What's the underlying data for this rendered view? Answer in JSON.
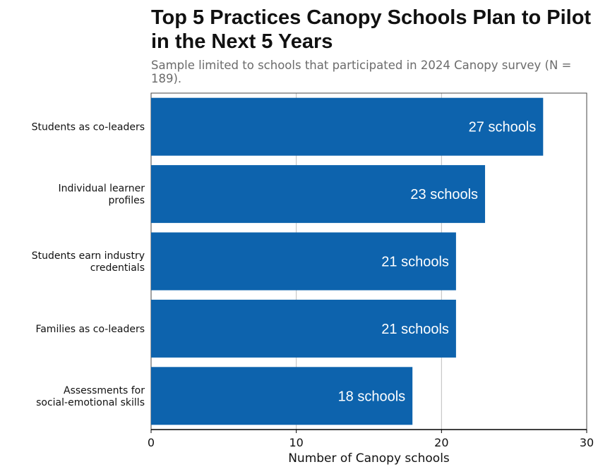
{
  "title": "Top 5 Practices Canopy Schools Plan to Pilot in the Next 5 Years",
  "subtitle": "Sample limited to schools that participated in 2024 Canopy survey (N = 189).",
  "colors": {
    "bar": "#0d63ad",
    "label": "#ffffff",
    "grid": "#bdbdbd",
    "axis": "#000000"
  },
  "chart_data": {
    "type": "bar",
    "orientation": "horizontal",
    "categories": [
      [
        "Students as co-leaders"
      ],
      [
        "Individual learner",
        "profiles"
      ],
      [
        "Students earn industry",
        "credentials"
      ],
      [
        "Families as co-leaders"
      ],
      [
        "Assessments for",
        "social-emotional skills"
      ]
    ],
    "values": [
      27,
      23,
      21,
      21,
      18
    ],
    "data_labels": [
      "27 schools",
      "23 schools",
      "21 schools",
      "21 schools",
      "18 schools"
    ],
    "xlabel": "Number of Canopy schools",
    "ylabel": "",
    "xlim": [
      0,
      30
    ],
    "xticks": [
      0,
      10,
      20,
      30
    ],
    "xtick_labels": [
      "0",
      "10",
      "20",
      "30"
    ],
    "grid": true
  }
}
